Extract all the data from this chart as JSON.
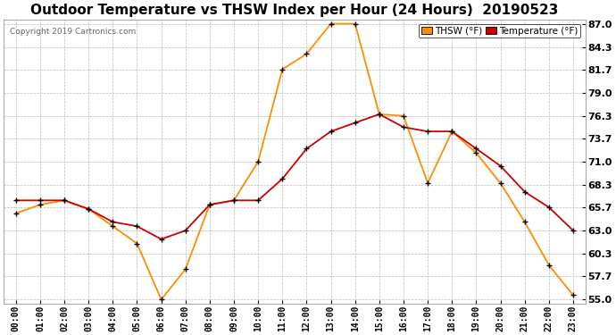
{
  "title": "Outdoor Temperature vs THSW Index per Hour (24 Hours)  20190523",
  "copyright": "Copyright 2019 Cartronics.com",
  "hours": [
    "00:00",
    "01:00",
    "02:00",
    "03:00",
    "04:00",
    "05:00",
    "06:00",
    "07:00",
    "08:00",
    "09:00",
    "10:00",
    "11:00",
    "12:00",
    "13:00",
    "14:00",
    "15:00",
    "16:00",
    "17:00",
    "18:00",
    "19:00",
    "20:00",
    "21:00",
    "22:00",
    "23:00"
  ],
  "temperature": [
    66.5,
    66.5,
    66.5,
    65.5,
    64.0,
    63.5,
    62.0,
    63.0,
    66.0,
    66.5,
    66.5,
    69.0,
    72.5,
    74.5,
    75.5,
    76.5,
    75.0,
    74.5,
    74.5,
    72.5,
    70.5,
    67.5,
    65.7,
    63.0
  ],
  "thsw": [
    65.0,
    66.0,
    66.5,
    65.5,
    63.5,
    61.5,
    55.0,
    58.5,
    66.0,
    66.5,
    71.0,
    81.7,
    83.5,
    87.0,
    87.0,
    76.5,
    76.3,
    68.5,
    74.5,
    72.0,
    68.5,
    64.0,
    59.0,
    55.5
  ],
  "temp_color": "#cc0000",
  "thsw_color": "#ff8c00",
  "marker_color": "#000000",
  "bg_color": "#ffffff",
  "grid_color": "#bbbbbb",
  "ylim_min": 54.5,
  "ylim_max": 87.5,
  "yticks": [
    55.0,
    57.7,
    60.3,
    63.0,
    65.7,
    68.3,
    71.0,
    73.7,
    76.3,
    79.0,
    81.7,
    84.3,
    87.0
  ],
  "title_fontsize": 11,
  "legend_thsw_label": "THSW (°F)",
  "legend_temp_label": "Temperature (°F)"
}
